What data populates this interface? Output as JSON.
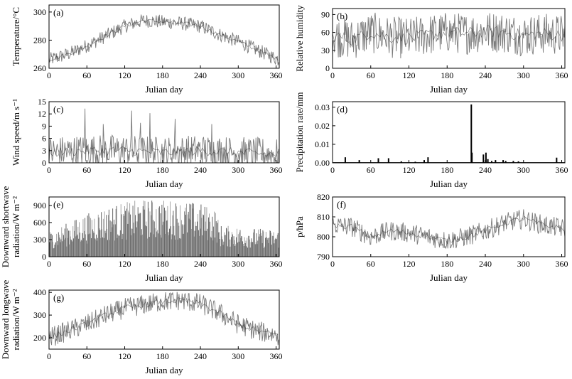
{
  "chart_data": [
    {
      "type": "line",
      "panel": "(a)",
      "xlabel": "Julian day",
      "ylabel": "Temperature/°C",
      "xlim": [
        0,
        365
      ],
      "ylim": [
        260,
        305
      ],
      "xticks": [
        "0",
        "60",
        "120",
        "180",
        "240",
        "300",
        "360"
      ],
      "yticks": [
        "260",
        "280",
        "300"
      ],
      "ytick_values": [
        260,
        280,
        300
      ],
      "envelope": {
        "x": [
          0,
          30,
          60,
          90,
          120,
          150,
          180,
          210,
          240,
          270,
          300,
          330,
          365
        ],
        "y": [
          266,
          270,
          276,
          283,
          290,
          294,
          293,
          292,
          290,
          284,
          279,
          273,
          266
        ],
        "spread": 5
      }
    },
    {
      "type": "line",
      "panel": "(b)",
      "xlabel": "Julian day",
      "ylabel": "Relative humidity",
      "xlim": [
        0,
        365
      ],
      "ylim": [
        0,
        100
      ],
      "xticks": [
        "0",
        "60",
        "120",
        "180",
        "240",
        "300",
        "360"
      ],
      "yticks": [
        "0",
        "30",
        "60",
        "90"
      ],
      "ytick_values": [
        0,
        30,
        60,
        90
      ],
      "envelope": {
        "x": [
          0,
          30,
          60,
          90,
          120,
          150,
          180,
          210,
          240,
          270,
          300,
          330,
          365
        ],
        "y": [
          55,
          48,
          60,
          52,
          50,
          56,
          60,
          58,
          62,
          60,
          55,
          58,
          55
        ],
        "spread": 35
      }
    },
    {
      "type": "line",
      "panel": "(c)",
      "xlabel": "Julian day",
      "ylabel": "Wind speed/m s⁻¹",
      "xlim": [
        0,
        365
      ],
      "ylim": [
        0,
        15
      ],
      "xticks": [
        "0",
        "60",
        "120",
        "180",
        "240",
        "300",
        "360"
      ],
      "yticks": [
        "0",
        "3",
        "6",
        "9",
        "12",
        "15"
      ],
      "ytick_values": [
        0,
        3,
        6,
        9,
        12,
        15
      ],
      "envelope": {
        "x": [
          0,
          60,
          120,
          180,
          240,
          300,
          365
        ],
        "y": [
          2.5,
          3,
          3,
          2.5,
          3,
          2.5,
          2
        ],
        "spread": 4
      },
      "peaks": [
        {
          "x": 57,
          "y": 13.3
        },
        {
          "x": 131,
          "y": 12.8
        },
        {
          "x": 160,
          "y": 12.2
        },
        {
          "x": 86,
          "y": 9.5
        },
        {
          "x": 145,
          "y": 9.8
        },
        {
          "x": 200,
          "y": 10.8
        },
        {
          "x": 258,
          "y": 9.5
        }
      ]
    },
    {
      "type": "bar",
      "panel": "(d)",
      "xlabel": "Julian day",
      "ylabel": "Precipitation rate/mm",
      "xlim": [
        0,
        365
      ],
      "ylim": [
        0,
        0.033
      ],
      "xticks": [
        "0",
        "60",
        "120",
        "180",
        "240",
        "300",
        "360"
      ],
      "yticks": [
        "0.00",
        "0.01",
        "0.02",
        "0.03"
      ],
      "ytick_values": [
        0,
        0.01,
        0.02,
        0.03
      ],
      "events": [
        {
          "x": 20,
          "y": 0.003
        },
        {
          "x": 42,
          "y": 0.0015
        },
        {
          "x": 72,
          "y": 0.0025
        },
        {
          "x": 88,
          "y": 0.0025
        },
        {
          "x": 108,
          "y": 0.0008
        },
        {
          "x": 130,
          "y": 0.0006
        },
        {
          "x": 144,
          "y": 0.0015
        },
        {
          "x": 150,
          "y": 0.003
        },
        {
          "x": 218,
          "y": 0.0315
        },
        {
          "x": 219,
          "y": 0.0055
        },
        {
          "x": 237,
          "y": 0.0045
        },
        {
          "x": 241,
          "y": 0.0055
        },
        {
          "x": 244,
          "y": 0.002
        },
        {
          "x": 250,
          "y": 0.001
        },
        {
          "x": 256,
          "y": 0.0015
        },
        {
          "x": 268,
          "y": 0.0015
        },
        {
          "x": 272,
          "y": 0.001
        },
        {
          "x": 284,
          "y": 0.001
        },
        {
          "x": 292,
          "y": 0.0008
        },
        {
          "x": 352,
          "y": 0.0028
        }
      ]
    },
    {
      "type": "bar",
      "panel": "(e)",
      "xlabel": "Julian day",
      "ylabel": "Downward shortwave radiation/W m⁻²",
      "ylabel_lines": [
        "Downward shortwave",
        "radiation/W m⁻²"
      ],
      "xlim": [
        0,
        365
      ],
      "ylim": [
        0,
        1050
      ],
      "xticks": [
        "0",
        "60",
        "120",
        "180",
        "240",
        "300",
        "360"
      ],
      "yticks": [
        "0",
        "300",
        "600",
        "900"
      ],
      "ytick_values": [
        0,
        300,
        600,
        900
      ],
      "envelope": {
        "x": [
          0,
          30,
          60,
          90,
          120,
          150,
          180,
          210,
          240,
          265,
          270,
          300,
          330,
          365
        ],
        "y": [
          450,
          600,
          760,
          880,
          960,
          1010,
          1010,
          990,
          940,
          850,
          560,
          530,
          500,
          470
        ]
      }
    },
    {
      "type": "line",
      "panel": "(f)",
      "xlabel": "Julian day",
      "ylabel": "p/hPa",
      "xlim": [
        0,
        365
      ],
      "ylim": [
        790,
        820
      ],
      "xticks": [
        "0",
        "60",
        "120",
        "180",
        "240",
        "300",
        "360"
      ],
      "yticks": [
        "790",
        "800",
        "810",
        "820"
      ],
      "ytick_values": [
        790,
        800,
        810,
        820
      ],
      "envelope": {
        "x": [
          0,
          30,
          60,
          90,
          120,
          150,
          180,
          210,
          240,
          270,
          300,
          330,
          365
        ],
        "y": [
          806,
          805,
          800,
          803,
          802,
          800,
          798,
          800,
          803,
          807,
          809,
          806,
          804
        ],
        "spread": 5
      }
    },
    {
      "type": "line",
      "panel": "(g)",
      "xlabel": "Julian day",
      "ylabel": "Downward longwave radiation/W m⁻²",
      "ylabel_lines": [
        "Downward longwave",
        "radiation/W m⁻²"
      ],
      "xlim": [
        0,
        365
      ],
      "ylim": [
        150,
        410
      ],
      "xticks": [
        "0",
        "60",
        "120",
        "180",
        "240",
        "300",
        "360"
      ],
      "yticks": [
        "200",
        "300",
        "400"
      ],
      "ytick_values": [
        200,
        300,
        400
      ],
      "envelope": {
        "x": [
          0,
          30,
          60,
          90,
          120,
          150,
          180,
          210,
          240,
          270,
          300,
          330,
          365
        ],
        "y": [
          200,
          230,
          260,
          300,
          330,
          345,
          360,
          365,
          350,
          310,
          260,
          230,
          210
        ],
        "spread": 45
      }
    }
  ]
}
